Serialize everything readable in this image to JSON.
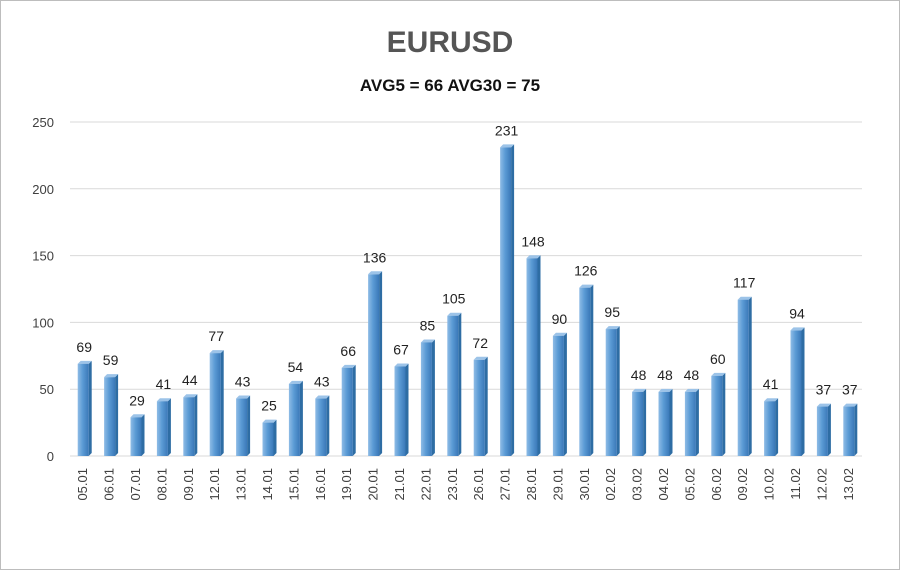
{
  "chart_data": {
    "type": "bar",
    "title": "EURUSD",
    "subtitle": "AVG5 = 66 AVG30 = 75",
    "xlabel": "",
    "ylabel": "",
    "ylim": [
      0,
      250
    ],
    "yticks": [
      0,
      50,
      100,
      150,
      200,
      250
    ],
    "grid": true,
    "categories": [
      "05.01",
      "06.01",
      "07.01",
      "08.01",
      "09.01",
      "12.01",
      "13.01",
      "14.01",
      "15.01",
      "16.01",
      "19.01",
      "20.01",
      "21.01",
      "22.01",
      "23.01",
      "26.01",
      "27.01",
      "28.01",
      "29.01",
      "30.01",
      "02.02",
      "03.02",
      "04.02",
      "05.02",
      "06.02",
      "09.02",
      "10.02",
      "11.02",
      "12.02",
      "13.02"
    ],
    "values": [
      69,
      59,
      29,
      41,
      44,
      77,
      43,
      25,
      54,
      43,
      66,
      136,
      67,
      85,
      105,
      72,
      231,
      148,
      90,
      126,
      95,
      48,
      48,
      48,
      60,
      117,
      41,
      94,
      37,
      37
    ],
    "colors": {
      "bar": "#5b9bd5",
      "bar_dark": "#2e6da4",
      "bar_light": "#9cc3e8",
      "grid": "#d9d9d9",
      "axis_text": "#404040"
    }
  }
}
